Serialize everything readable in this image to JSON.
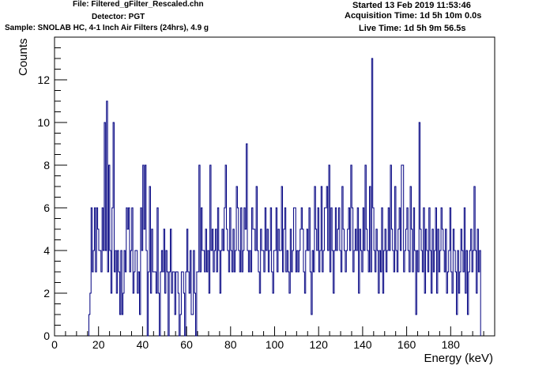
{
  "header": {
    "file": "File: Filtered_gFilter_Rescaled.chn",
    "detector": "Detector: PGT",
    "sample": "Sample: SNOLAB HC, 4-1 Inch Air Filters (24hrs), 4.9 g",
    "started": "Started 13 Feb 2019 11:53:46",
    "acquisition_time": "Acquisition Time: 1d 5h 10m 0.0s",
    "live_time": "Live Time: 1d 5h 9m 56.5s"
  },
  "chart_data": {
    "type": "histogram",
    "xlabel": "Energy (keV)",
    "ylabel": "Counts",
    "xlim": [
      0,
      200
    ],
    "ylim": [
      0,
      14
    ],
    "x_ticks": [
      0,
      20,
      40,
      60,
      80,
      100,
      120,
      140,
      160,
      180
    ],
    "y_ticks": [
      0,
      2,
      4,
      6,
      8,
      10,
      12
    ],
    "line_color": "#000080",
    "bin_start": 15.6,
    "bin_width": 0.5,
    "counts": [
      1,
      2,
      6,
      3,
      4,
      6,
      3,
      6,
      5,
      4,
      4,
      3,
      6,
      4,
      10,
      4,
      11,
      3,
      8,
      4,
      2,
      6,
      10,
      3,
      4,
      2,
      4,
      3,
      1,
      4,
      1,
      2,
      4,
      3,
      6,
      5,
      6,
      3,
      4,
      6,
      2,
      3,
      4,
      4,
      2,
      3,
      1,
      6,
      4,
      8,
      5,
      8,
      4,
      0,
      3,
      7,
      2,
      5,
      3,
      3,
      3,
      2,
      6,
      2,
      0,
      3,
      4,
      3,
      5,
      2,
      4,
      3,
      0,
      3,
      5,
      2,
      3,
      3,
      1,
      3,
      3,
      2,
      0,
      1,
      3,
      3,
      2,
      0,
      3,
      5,
      3,
      2,
      4,
      1,
      1,
      4,
      2,
      0,
      3,
      3,
      8,
      3,
      6,
      4,
      4,
      3,
      5,
      3,
      4,
      2,
      8,
      4,
      5,
      3,
      4,
      5,
      3,
      6,
      4,
      2,
      4,
      5,
      4,
      6,
      8,
      5,
      4,
      3,
      6,
      4,
      3,
      5,
      3,
      4,
      7,
      6,
      4,
      3,
      6,
      3,
      4,
      6,
      5,
      9,
      4,
      3,
      4,
      3,
      6,
      5,
      5,
      4,
      7,
      4,
      3,
      2,
      5,
      4,
      4,
      3,
      6,
      4,
      5,
      3,
      4,
      6,
      3,
      2,
      4,
      4,
      6,
      3,
      5,
      4,
      4,
      7,
      3,
      5,
      6,
      3,
      4,
      3,
      2,
      5,
      3,
      4,
      6,
      6,
      3,
      4,
      3,
      4,
      5,
      6,
      5,
      3,
      2,
      4,
      5,
      4,
      6,
      3,
      1,
      4,
      3,
      7,
      5,
      4,
      6,
      3,
      4,
      7,
      3,
      4,
      6,
      6,
      7,
      4,
      8,
      3,
      6,
      4,
      2,
      4,
      6,
      4,
      5,
      6,
      4,
      3,
      7,
      5,
      4,
      3,
      4,
      5,
      6,
      4,
      8,
      6,
      3,
      4,
      5,
      4,
      6,
      2,
      5,
      4,
      3,
      6,
      4,
      8,
      5,
      4,
      3,
      7,
      3,
      13,
      6,
      4,
      3,
      5,
      4,
      2,
      4,
      3,
      6,
      2,
      4,
      5,
      3,
      4,
      6,
      4,
      8,
      5,
      4,
      3,
      7,
      4,
      3,
      5,
      6,
      4,
      8,
      8,
      3,
      4,
      5,
      6,
      4,
      3,
      7,
      5,
      3,
      6,
      4,
      1,
      4,
      3,
      10,
      5,
      4,
      3,
      6,
      2,
      5,
      4,
      3,
      6,
      4,
      2,
      5,
      3,
      4,
      6,
      2,
      5,
      3,
      4,
      6,
      5,
      4,
      3,
      5,
      2,
      3,
      4,
      6,
      3,
      2,
      5,
      4,
      3,
      1,
      4,
      2,
      3,
      5,
      4,
      3,
      6,
      2,
      4,
      1,
      3,
      4,
      5,
      3,
      4,
      7,
      4,
      2,
      5,
      3,
      4
    ]
  }
}
